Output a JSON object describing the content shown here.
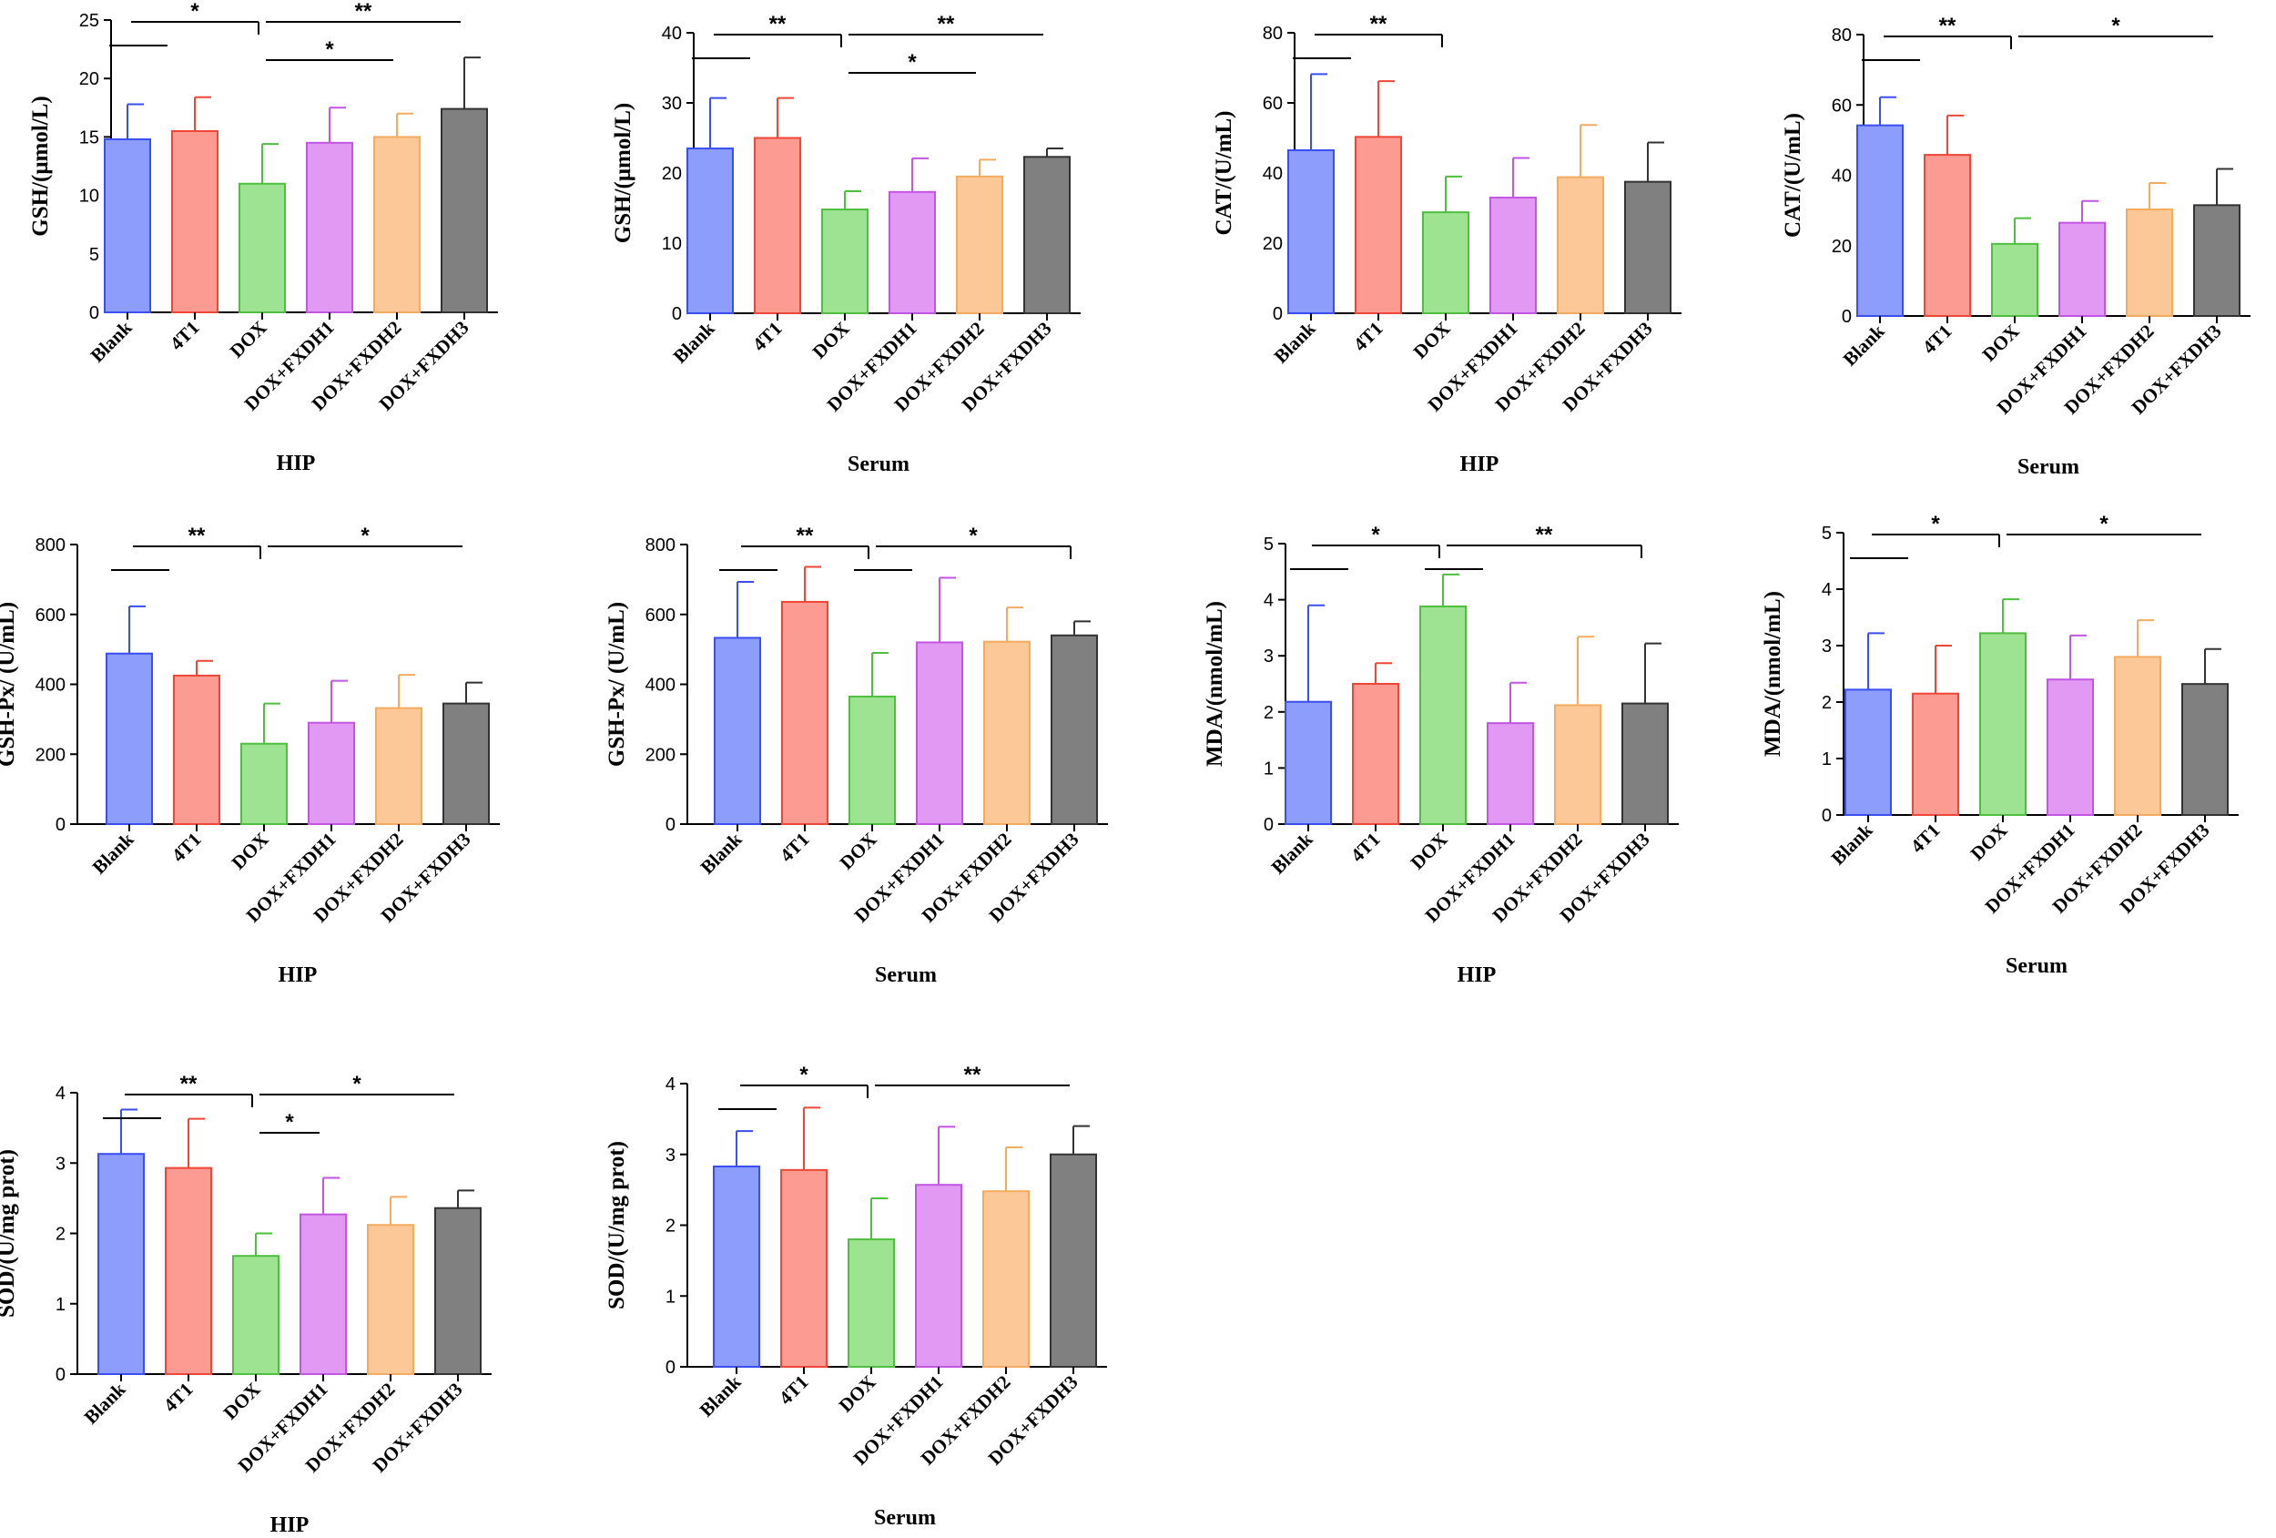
{
  "colors": {
    "fill": [
      "#8c9dfb",
      "#fc9b91",
      "#9de391",
      "#e199f3",
      "#fdc898",
      "#808080"
    ],
    "stroke": [
      "#3a4ef2",
      "#ef4737",
      "#4fbf3f",
      "#c256e3",
      "#f4ab5f",
      "#333333"
    ]
  },
  "chart_data": [
    {
      "type": "bar",
      "id": "gsh-hip",
      "categories": [
        "Blank",
        "4T1",
        "DOX",
        "DOX+FXDH1",
        "DOX+FXDH2",
        "DOX+FXDH3"
      ],
      "values": [
        14.8,
        15.5,
        11.0,
        14.5,
        15.0,
        17.4
      ],
      "errors": [
        3.0,
        2.9,
        3.4,
        3.0,
        2.0,
        4.4
      ],
      "ylabel": "GSH/(μmol/L)",
      "xlabel": "HIP",
      "ylim": [
        0,
        25
      ],
      "yticks": [
        0,
        5,
        10,
        15,
        20,
        25
      ],
      "brackets": [
        {
          "from": 0,
          "to": 2,
          "label": "*",
          "level": 1,
          "join": true
        },
        {
          "from": 2,
          "to": 5,
          "label": "**",
          "level": 1
        },
        {
          "from": 2,
          "to": 4,
          "label": "*",
          "level": 2
        }
      ]
    },
    {
      "type": "bar",
      "id": "gsh-serum",
      "categories": [
        "Blank",
        "4T1",
        "DOX",
        "DOX+FXDH1",
        "DOX+FXDH2",
        "DOX+FXDH3"
      ],
      "values": [
        23.5,
        25.0,
        14.8,
        17.3,
        19.5,
        22.3
      ],
      "errors": [
        7.2,
        5.7,
        2.6,
        4.8,
        2.4,
        1.2
      ],
      "ylabel": "GSH/(μmol/L)",
      "xlabel": "Serum",
      "ylim": [
        0,
        40
      ],
      "yticks": [
        0,
        10,
        20,
        30,
        40
      ],
      "brackets": [
        {
          "from": 0,
          "to": 2,
          "label": "**",
          "level": 1,
          "join": true
        },
        {
          "from": 2,
          "to": 5,
          "label": "**",
          "level": 1
        },
        {
          "from": 2,
          "to": 4,
          "label": "*",
          "level": 2
        }
      ]
    },
    {
      "type": "bar",
      "id": "cat-hip",
      "categories": [
        "Blank",
        "4T1",
        "DOX",
        "DOX+FXDH1",
        "DOX+FXDH2",
        "DOX+FXDH3"
      ],
      "values": [
        46.5,
        50.3,
        28.8,
        33.0,
        38.8,
        37.5
      ],
      "errors": [
        21.7,
        15.9,
        10.2,
        11.3,
        14.9,
        11.2
      ],
      "ylabel": "CAT/(U/mL)",
      "xlabel": "HIP",
      "ylim": [
        0,
        80
      ],
      "yticks": [
        0,
        20,
        40,
        60,
        80
      ],
      "brackets": [
        {
          "from": 0,
          "to": 2,
          "label": "**",
          "level": 1,
          "join": true
        }
      ]
    },
    {
      "type": "bar",
      "id": "cat-serum",
      "categories": [
        "Blank",
        "4T1",
        "DOX",
        "DOX+FXDH1",
        "DOX+FXDH2",
        "DOX+FXDH3"
      ],
      "values": [
        54.2,
        45.8,
        20.5,
        26.5,
        30.3,
        31.5
      ],
      "errors": [
        8.0,
        11.2,
        7.3,
        6.2,
        7.5,
        10.3
      ],
      "ylabel": "CAT/(U/mL)",
      "xlabel": "Serum",
      "ylim": [
        0,
        80
      ],
      "yticks": [
        0,
        20,
        40,
        60,
        80
      ],
      "brackets": [
        {
          "from": 0,
          "to": 2,
          "label": "**",
          "level": 1,
          "join": true
        },
        {
          "from": 2,
          "to": 5,
          "label": "*",
          "level": 1
        }
      ]
    },
    {
      "type": "bar",
      "id": "gshpx-hip",
      "categories": [
        "Blank",
        "4T1",
        "DOX",
        "DOX+FXDH1",
        "DOX+FXDH2",
        "DOX+FXDH3"
      ],
      "values": [
        488,
        425,
        230,
        290,
        332,
        345
      ],
      "errors": [
        135,
        42,
        115,
        120,
        95,
        60
      ],
      "ylabel": "GSH-Px/  (U/mL)",
      "xlabel": "HIP",
      "ylim": [
        0,
        800
      ],
      "yticks": [
        0,
        200,
        400,
        600,
        800
      ],
      "brackets": [
        {
          "from": 0,
          "to": 2,
          "label": "**",
          "level": 1,
          "join": true
        },
        {
          "from": 2,
          "to": 5,
          "label": "*",
          "level": 1
        }
      ]
    },
    {
      "type": "bar",
      "id": "gshpx-serum",
      "categories": [
        "Blank",
        "4T1",
        "DOX",
        "DOX+FXDH1",
        "DOX+FXDH2",
        "DOX+FXDH3"
      ],
      "values": [
        533,
        636,
        365,
        520,
        522,
        540
      ],
      "errors": [
        160,
        100,
        125,
        185,
        98,
        40
      ],
      "ylabel": "GSH-Px/  (U/mL)",
      "xlabel": "Serum",
      "ylim": [
        0,
        800
      ],
      "yticks": [
        0,
        200,
        400,
        600,
        800
      ],
      "brackets": [
        {
          "from": 0,
          "to": 2,
          "label": "**",
          "level": 1,
          "join": true
        },
        {
          "from": 2,
          "to": 5,
          "label": "*",
          "level": 1,
          "join": true
        }
      ]
    },
    {
      "type": "bar",
      "id": "mda-hip",
      "categories": [
        "Blank",
        "4T1",
        "DOX",
        "DOX+FXDH1",
        "DOX+FXDH2",
        "DOX+FXDH3"
      ],
      "values": [
        2.18,
        2.5,
        3.88,
        1.8,
        2.12,
        2.15
      ],
      "errors": [
        1.72,
        0.37,
        0.57,
        0.72,
        1.22,
        1.07
      ],
      "ylabel": "MDA/(nmol/mL)",
      "xlabel": "HIP",
      "ylim": [
        0,
        5
      ],
      "yticks": [
        0,
        1,
        2,
        3,
        4,
        5
      ],
      "brackets": [
        {
          "from": 0,
          "to": 2,
          "label": "*",
          "level": 1,
          "join": true
        },
        {
          "from": 2,
          "to": 5,
          "label": "**",
          "level": 1,
          "join": true
        }
      ]
    },
    {
      "type": "bar",
      "id": "mda-serum",
      "categories": [
        "Blank",
        "4T1",
        "DOX",
        "DOX+FXDH1",
        "DOX+FXDH2",
        "DOX+FXDH3"
      ],
      "values": [
        2.22,
        2.15,
        3.22,
        2.4,
        2.8,
        2.32
      ],
      "errors": [
        1.0,
        0.85,
        0.6,
        0.78,
        0.65,
        0.62
      ],
      "ylabel": "MDA/(nmol/mL)",
      "xlabel": "Serum",
      "ylim": [
        0,
        5
      ],
      "yticks": [
        0,
        1,
        2,
        3,
        4,
        5
      ],
      "brackets": [
        {
          "from": 0,
          "to": 2,
          "label": "*",
          "level": 1,
          "join": true
        },
        {
          "from": 2,
          "to": 5,
          "label": "*",
          "level": 1
        }
      ]
    },
    {
      "type": "bar",
      "id": "sod-hip",
      "categories": [
        "Blank",
        "4T1",
        "DOX",
        "DOX+FXDH1",
        "DOX+FXDH2",
        "DOX+FXDH3"
      ],
      "values": [
        3.13,
        2.93,
        1.68,
        2.27,
        2.12,
        2.36
      ],
      "errors": [
        0.63,
        0.7,
        0.32,
        0.52,
        0.4,
        0.25
      ],
      "ylabel": "SOD/(U/mg prot)",
      "xlabel": "HIP",
      "ylim": [
        0,
        4
      ],
      "yticks": [
        0,
        1,
        2,
        3,
        4
      ],
      "brackets": [
        {
          "from": 0,
          "to": 2,
          "label": "**",
          "level": 1,
          "join": true
        },
        {
          "from": 2,
          "to": 5,
          "label": "*",
          "level": 1
        },
        {
          "from": 2,
          "to": 3,
          "label": "*",
          "level": 2
        }
      ]
    },
    {
      "type": "bar",
      "id": "sod-serum",
      "categories": [
        "Blank",
        "4T1",
        "DOX",
        "DOX+FXDH1",
        "DOX+FXDH2",
        "DOX+FXDH3"
      ],
      "values": [
        2.83,
        2.78,
        1.8,
        2.57,
        2.48,
        3.0
      ],
      "errors": [
        0.5,
        0.88,
        0.58,
        0.82,
        0.62,
        0.4
      ],
      "ylabel": "SOD/(U/mg prot)",
      "xlabel": "Serum",
      "ylim": [
        0,
        4
      ],
      "yticks": [
        0,
        1,
        2,
        3,
        4
      ],
      "brackets": [
        {
          "from": 0,
          "to": 2,
          "label": "*",
          "level": 1,
          "join": true
        },
        {
          "from": 2,
          "to": 5,
          "label": "**",
          "level": 1
        }
      ]
    }
  ]
}
